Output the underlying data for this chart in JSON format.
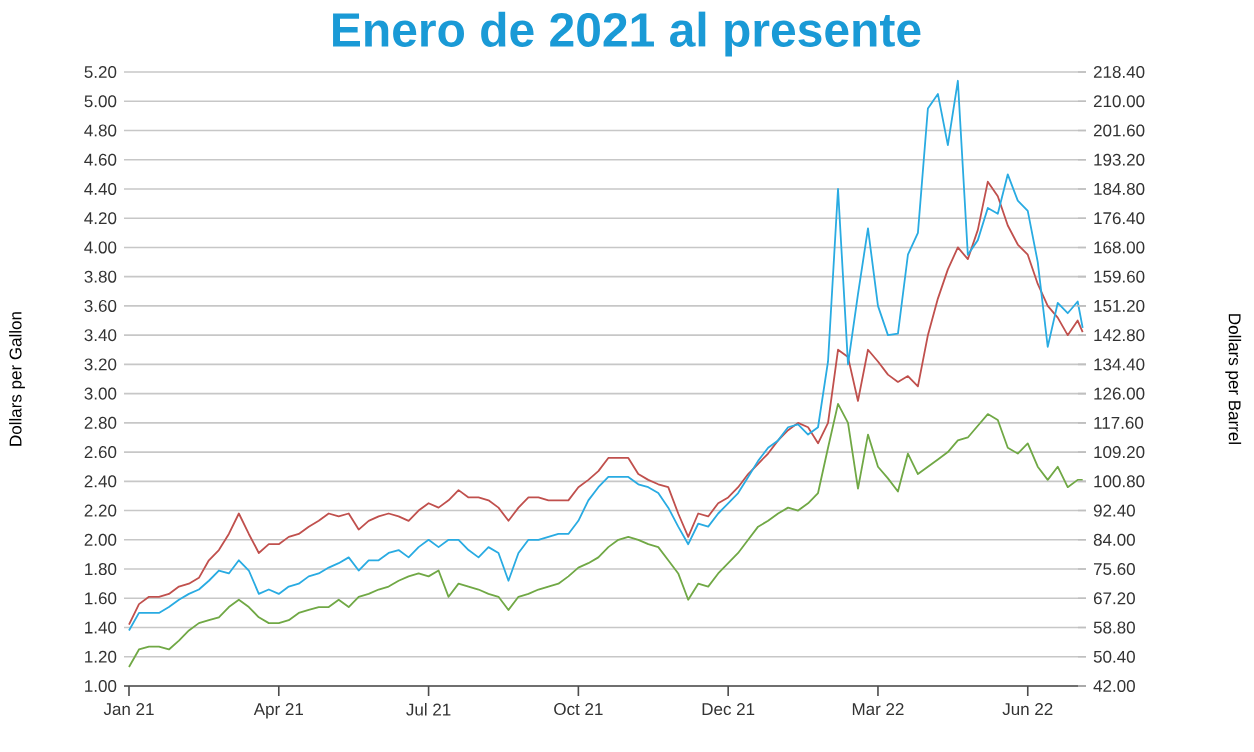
{
  "chart_data": {
    "type": "line",
    "title": "Enero de 2021 al presente",
    "ylabel": "Dollars per Gallon",
    "y2label": "Dollars per Barrel",
    "x": [
      "2021-01-04",
      "2021-01-10",
      "2021-01-16",
      "2021-01-22",
      "2021-01-28",
      "2021-02-03",
      "2021-02-09",
      "2021-02-15",
      "2021-02-21",
      "2021-02-27",
      "2021-03-05",
      "2021-03-11",
      "2021-03-17",
      "2021-03-23",
      "2021-03-29",
      "2021-04-04",
      "2021-04-10",
      "2021-04-16",
      "2021-04-22",
      "2021-04-28",
      "2021-05-04",
      "2021-05-10",
      "2021-05-16",
      "2021-05-22",
      "2021-05-28",
      "2021-06-03",
      "2021-06-09",
      "2021-06-15",
      "2021-06-21",
      "2021-06-27",
      "2021-07-03",
      "2021-07-09",
      "2021-07-15",
      "2021-07-21",
      "2021-07-27",
      "2021-08-02",
      "2021-08-08",
      "2021-08-14",
      "2021-08-20",
      "2021-08-26",
      "2021-09-01",
      "2021-09-07",
      "2021-09-13",
      "2021-09-19",
      "2021-09-25",
      "2021-10-01",
      "2021-10-07",
      "2021-10-13",
      "2021-10-19",
      "2021-10-25",
      "2021-10-31",
      "2021-11-06",
      "2021-11-12",
      "2021-11-18",
      "2021-11-24",
      "2021-11-30",
      "2021-12-06",
      "2021-12-12",
      "2021-12-18",
      "2021-12-24",
      "2021-12-30",
      "2022-01-05",
      "2022-01-11",
      "2022-01-17",
      "2022-01-23",
      "2022-01-29",
      "2022-02-04",
      "2022-02-10",
      "2022-02-16",
      "2022-02-22",
      "2022-02-28",
      "2022-03-06",
      "2022-03-12",
      "2022-03-18",
      "2022-03-24",
      "2022-03-30",
      "2022-04-05",
      "2022-04-11",
      "2022-04-17",
      "2022-04-23",
      "2022-04-29",
      "2022-05-05",
      "2022-05-11",
      "2022-05-17",
      "2022-05-23",
      "2022-05-29",
      "2022-06-04",
      "2022-06-10",
      "2022-06-16",
      "2022-06-22",
      "2022-06-28",
      "2022-07-04",
      "2022-07-10",
      "2022-07-16",
      "2022-07-22",
      "2022-07-28",
      "2022-07-31"
    ],
    "series": [
      {
        "color": "#c0504d",
        "values": [
          1.42,
          1.56,
          1.61,
          1.61,
          1.63,
          1.68,
          1.7,
          1.74,
          1.86,
          1.93,
          2.04,
          2.18,
          2.04,
          1.91,
          1.97,
          1.97,
          2.02,
          2.04,
          2.09,
          2.13,
          2.18,
          2.16,
          2.18,
          2.07,
          2.13,
          2.16,
          2.18,
          2.16,
          2.13,
          2.2,
          2.25,
          2.22,
          2.27,
          2.34,
          2.29,
          2.29,
          2.27,
          2.22,
          2.13,
          2.22,
          2.29,
          2.29,
          2.27,
          2.27,
          2.27,
          2.36,
          2.41,
          2.47,
          2.56,
          2.56,
          2.56,
          2.45,
          2.41,
          2.38,
          2.36,
          2.18,
          2.02,
          2.18,
          2.16,
          2.25,
          2.29,
          2.36,
          2.45,
          2.52,
          2.59,
          2.68,
          2.75,
          2.8,
          2.77,
          2.66,
          2.8,
          3.3,
          3.25,
          2.95,
          3.3,
          3.22,
          3.13,
          3.08,
          3.12,
          3.05,
          3.4,
          3.65,
          3.85,
          4.0,
          3.92,
          4.12,
          4.45,
          4.35,
          4.15,
          4.02,
          3.95,
          3.75,
          3.6,
          3.52,
          3.4,
          3.5,
          3.42
        ]
      },
      {
        "color": "#29abe2",
        "values": [
          1.38,
          1.5,
          1.5,
          1.5,
          1.54,
          1.59,
          1.63,
          1.66,
          1.72,
          1.79,
          1.77,
          1.86,
          1.79,
          1.63,
          1.66,
          1.63,
          1.68,
          1.7,
          1.75,
          1.77,
          1.81,
          1.84,
          1.88,
          1.79,
          1.86,
          1.86,
          1.91,
          1.93,
          1.88,
          1.95,
          2.0,
          1.95,
          2.0,
          2.0,
          1.93,
          1.88,
          1.95,
          1.91,
          1.72,
          1.91,
          2.0,
          2.0,
          2.02,
          2.04,
          2.04,
          2.13,
          2.27,
          2.36,
          2.43,
          2.43,
          2.43,
          2.38,
          2.36,
          2.32,
          2.22,
          2.09,
          1.97,
          2.11,
          2.09,
          2.18,
          2.25,
          2.32,
          2.43,
          2.54,
          2.63,
          2.68,
          2.77,
          2.79,
          2.72,
          2.77,
          3.22,
          4.4,
          3.2,
          3.68,
          4.13,
          3.6,
          3.4,
          3.41,
          3.95,
          4.1,
          4.95,
          5.05,
          4.7,
          5.14,
          3.95,
          4.05,
          4.27,
          4.23,
          4.5,
          4.32,
          4.25,
          3.9,
          3.32,
          3.62,
          3.55,
          3.63,
          3.45
        ]
      },
      {
        "color": "#70a845",
        "values": [
          1.13,
          1.25,
          1.27,
          1.27,
          1.25,
          1.31,
          1.38,
          1.43,
          1.45,
          1.47,
          1.54,
          1.59,
          1.54,
          1.47,
          1.43,
          1.43,
          1.45,
          1.5,
          1.52,
          1.54,
          1.54,
          1.59,
          1.54,
          1.61,
          1.63,
          1.66,
          1.68,
          1.72,
          1.75,
          1.77,
          1.75,
          1.79,
          1.61,
          1.7,
          1.68,
          1.66,
          1.63,
          1.61,
          1.52,
          1.61,
          1.63,
          1.66,
          1.68,
          1.7,
          1.75,
          1.81,
          1.84,
          1.88,
          1.95,
          2.0,
          2.02,
          2.0,
          1.97,
          1.95,
          1.86,
          1.77,
          1.59,
          1.7,
          1.68,
          1.77,
          1.84,
          1.91,
          2.0,
          2.09,
          2.13,
          2.18,
          2.22,
          2.2,
          2.25,
          2.32,
          2.63,
          2.93,
          2.8,
          2.35,
          2.72,
          2.5,
          2.42,
          2.33,
          2.59,
          2.45,
          2.5,
          2.55,
          2.6,
          2.68,
          2.7,
          2.78,
          2.86,
          2.82,
          2.63,
          2.59,
          2.66,
          2.5,
          2.41,
          2.5,
          2.36,
          2.41,
          2.41
        ]
      }
    ],
    "xlim": [
      "2021-01-01",
      "2022-08-02"
    ],
    "xticks": [
      {
        "value": "2021-01-04",
        "label": "Jan 21"
      },
      {
        "value": "2021-04-04",
        "label": "Apr 21"
      },
      {
        "value": "2021-07-03",
        "label": "Jul 21"
      },
      {
        "value": "2021-10-01",
        "label": "Oct 21"
      },
      {
        "value": "2021-12-30",
        "label": "Dec 21"
      },
      {
        "value": "2022-03-30",
        "label": "Mar 22"
      },
      {
        "value": "2022-06-28",
        "label": "Jun 22"
      }
    ],
    "ylim": [
      1.0,
      5.2
    ],
    "yticks": [
      {
        "value": 1.0,
        "label": "1.00"
      },
      {
        "value": 1.2,
        "label": "1.20"
      },
      {
        "value": 1.4,
        "label": "1.40"
      },
      {
        "value": 1.6,
        "label": "1.60"
      },
      {
        "value": 1.8,
        "label": "1.80"
      },
      {
        "value": 2.0,
        "label": "2.00"
      },
      {
        "value": 2.2,
        "label": "2.20"
      },
      {
        "value": 2.4,
        "label": "2.40"
      },
      {
        "value": 2.6,
        "label": "2.60"
      },
      {
        "value": 2.8,
        "label": "2.80"
      },
      {
        "value": 3.0,
        "label": "3.00"
      },
      {
        "value": 3.2,
        "label": "3.20"
      },
      {
        "value": 3.4,
        "label": "3.40"
      },
      {
        "value": 3.6,
        "label": "3.60"
      },
      {
        "value": 3.8,
        "label": "3.80"
      },
      {
        "value": 4.0,
        "label": "4.00"
      },
      {
        "value": 4.2,
        "label": "4.20"
      },
      {
        "value": 4.4,
        "label": "4.40"
      },
      {
        "value": 4.6,
        "label": "4.60"
      },
      {
        "value": 4.8,
        "label": "4.80"
      },
      {
        "value": 5.0,
        "label": "5.00"
      },
      {
        "value": 5.2,
        "label": "5.20"
      }
    ],
    "y2lim": [
      42.0,
      218.4
    ],
    "y2ticks": [
      {
        "value": 42.0,
        "label": "42.00"
      },
      {
        "value": 50.4,
        "label": "50.40"
      },
      {
        "value": 58.8,
        "label": "58.80"
      },
      {
        "value": 67.2,
        "label": "67.20"
      },
      {
        "value": 75.6,
        "label": "75.60"
      },
      {
        "value": 84.0,
        "label": "84.00"
      },
      {
        "value": 92.4,
        "label": "92.40"
      },
      {
        "value": 100.8,
        "label": "100.80"
      },
      {
        "value": 109.2,
        "label": "109.20"
      },
      {
        "value": 117.6,
        "label": "117.60"
      },
      {
        "value": 126.0,
        "label": "126.00"
      },
      {
        "value": 134.4,
        "label": "134.40"
      },
      {
        "value": 142.8,
        "label": "142.80"
      },
      {
        "value": 151.2,
        "label": "151.20"
      },
      {
        "value": 159.6,
        "label": "159.60"
      },
      {
        "value": 168.0,
        "label": "168.00"
      },
      {
        "value": 176.4,
        "label": "176.40"
      },
      {
        "value": 184.8,
        "label": "184.80"
      },
      {
        "value": 193.2,
        "label": "193.20"
      },
      {
        "value": 201.6,
        "label": "201.60"
      },
      {
        "value": 210.0,
        "label": "210.00"
      },
      {
        "value": 218.4,
        "label": "218.40"
      }
    ],
    "grid": "y"
  }
}
